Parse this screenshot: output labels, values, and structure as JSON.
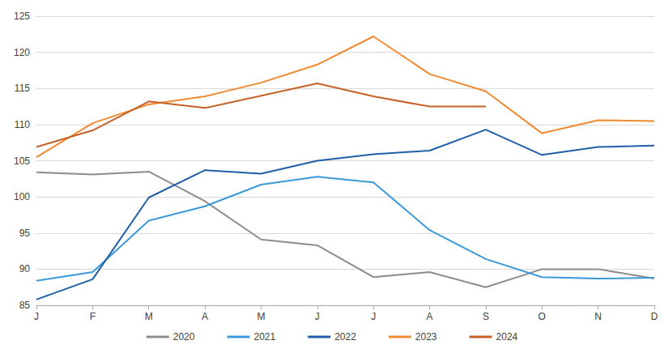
{
  "chart_data": {
    "type": "line",
    "categories": [
      "J",
      "F",
      "M",
      "A",
      "M",
      "J",
      "J",
      "A",
      "S",
      "O",
      "N",
      "D"
    ],
    "series": [
      {
        "name": "2020",
        "color": "#8c8c8c",
        "values": [
          103.4,
          103.1,
          103.5,
          99.4,
          94.1,
          93.3,
          88.9,
          89.6,
          87.5,
          90.0,
          90.0,
          88.7
        ]
      },
      {
        "name": "2021",
        "color": "#3a9ad9",
        "values": [
          88.4,
          89.6,
          96.7,
          98.7,
          101.7,
          102.8,
          102.0,
          95.4,
          91.4,
          88.9,
          88.7,
          88.8
        ]
      },
      {
        "name": "2022",
        "color": "#1f5fa8",
        "values": [
          85.8,
          88.6,
          99.9,
          103.7,
          103.2,
          105.0,
          105.9,
          106.4,
          109.3,
          105.8,
          106.9,
          107.1
        ]
      },
      {
        "name": "2023",
        "color": "#f08a30",
        "values": [
          105.5,
          110.2,
          112.8,
          113.9,
          115.8,
          118.3,
          122.2,
          117.0,
          114.6,
          108.8,
          110.6,
          110.5
        ]
      },
      {
        "name": "2024",
        "color": "#c8602a",
        "values": [
          106.9,
          109.2,
          113.2,
          112.3,
          114.0,
          115.7,
          113.9,
          112.5,
          112.5,
          null,
          null,
          null
        ]
      }
    ],
    "ylim": [
      85,
      125
    ],
    "yticks": [
      85,
      90,
      95,
      100,
      105,
      110,
      115,
      120,
      125
    ],
    "grid": true,
    "legend": "bottom"
  }
}
